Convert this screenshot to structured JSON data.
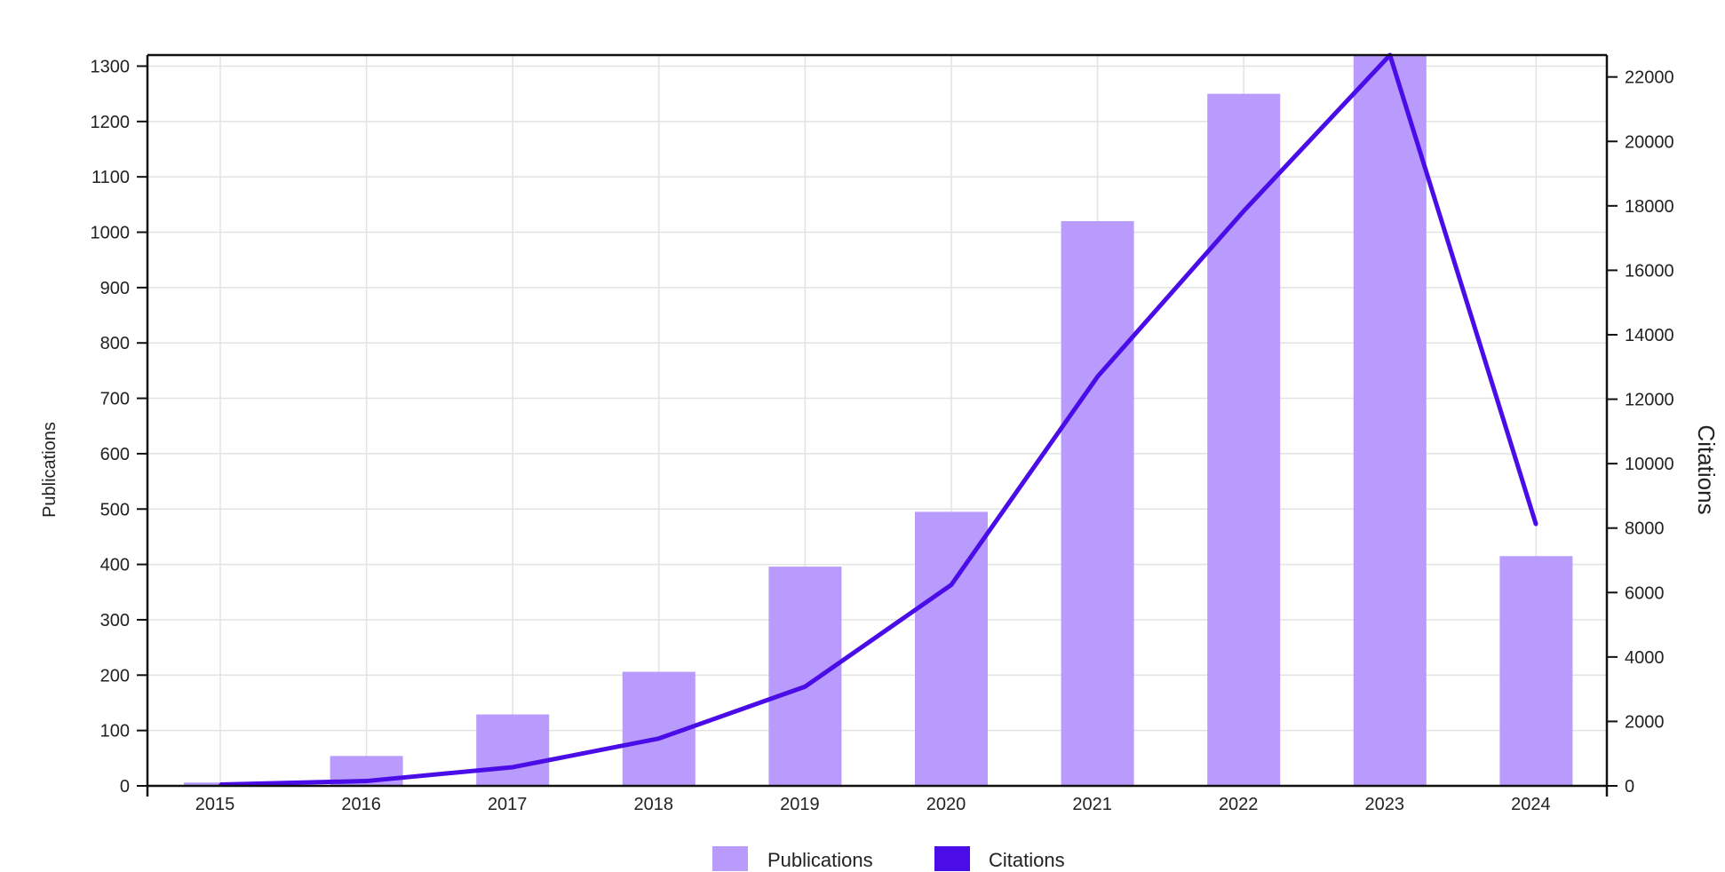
{
  "chart_data": {
    "type": "bar",
    "categories": [
      "2015",
      "2016",
      "2017",
      "2018",
      "2019",
      "2020",
      "2021",
      "2022",
      "2023",
      "2024"
    ],
    "series": [
      {
        "name": "Publications",
        "type": "bar",
        "axis": "left",
        "color": "#b99afd",
        "values": [
          6,
          54,
          129,
          206,
          396,
          495,
          1020,
          1250,
          1320,
          415
        ]
      },
      {
        "name": "Citations",
        "type": "line",
        "axis": "right",
        "color": "#4a0de8",
        "values": [
          40,
          150,
          580,
          1470,
          3080,
          6240,
          12700,
          17840,
          22680,
          8100
        ]
      }
    ],
    "ylabel_left": "Publications",
    "ylabel_right": "Citations",
    "ylim_left": [
      0,
      1320
    ],
    "ylim_right": [
      0,
      22680
    ],
    "yticks_left": [
      0,
      100,
      200,
      300,
      400,
      500,
      600,
      700,
      800,
      900,
      1000,
      1100,
      1200,
      1300
    ],
    "yticks_right": [
      0,
      2000,
      4000,
      6000,
      8000,
      10000,
      12000,
      14000,
      16000,
      18000,
      20000,
      22000
    ],
    "grid": true,
    "legend": "bottom-center"
  }
}
